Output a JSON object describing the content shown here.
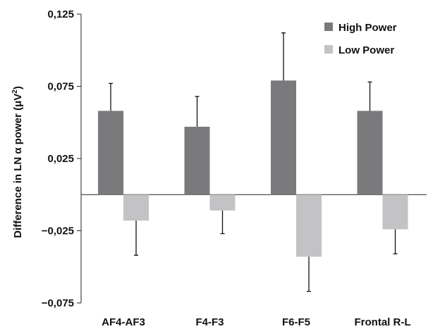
{
  "chart_data": {
    "type": "bar",
    "ylabel": {
      "main": "Difference in LN α power (μV",
      "sup": "2",
      "close": ")"
    },
    "xlabel": "",
    "categories": [
      "AF4-AF3",
      "F4-F3",
      "F6-F5",
      "Frontal R-L"
    ],
    "ylim": [
      -0.075,
      0.125
    ],
    "yticks": [
      -0.075,
      -0.025,
      0.025,
      0.075,
      0.125
    ],
    "ytick_labels": [
      "−0,075",
      "−0,025",
      "0,025",
      "0,075",
      "0,125"
    ],
    "series": [
      {
        "name": "High Power",
        "color": "#7a7a7c",
        "values": [
          0.058,
          0.047,
          0.079,
          0.058
        ],
        "errors": [
          0.019,
          0.021,
          0.033,
          0.02
        ]
      },
      {
        "name": "Low Power",
        "color": "#c3c3c5",
        "values": [
          -0.018,
          -0.011,
          -0.043,
          -0.024
        ],
        "errors": [
          0.024,
          0.016,
          0.024,
          0.017
        ]
      }
    ],
    "legend": "top-right",
    "grid": false
  }
}
